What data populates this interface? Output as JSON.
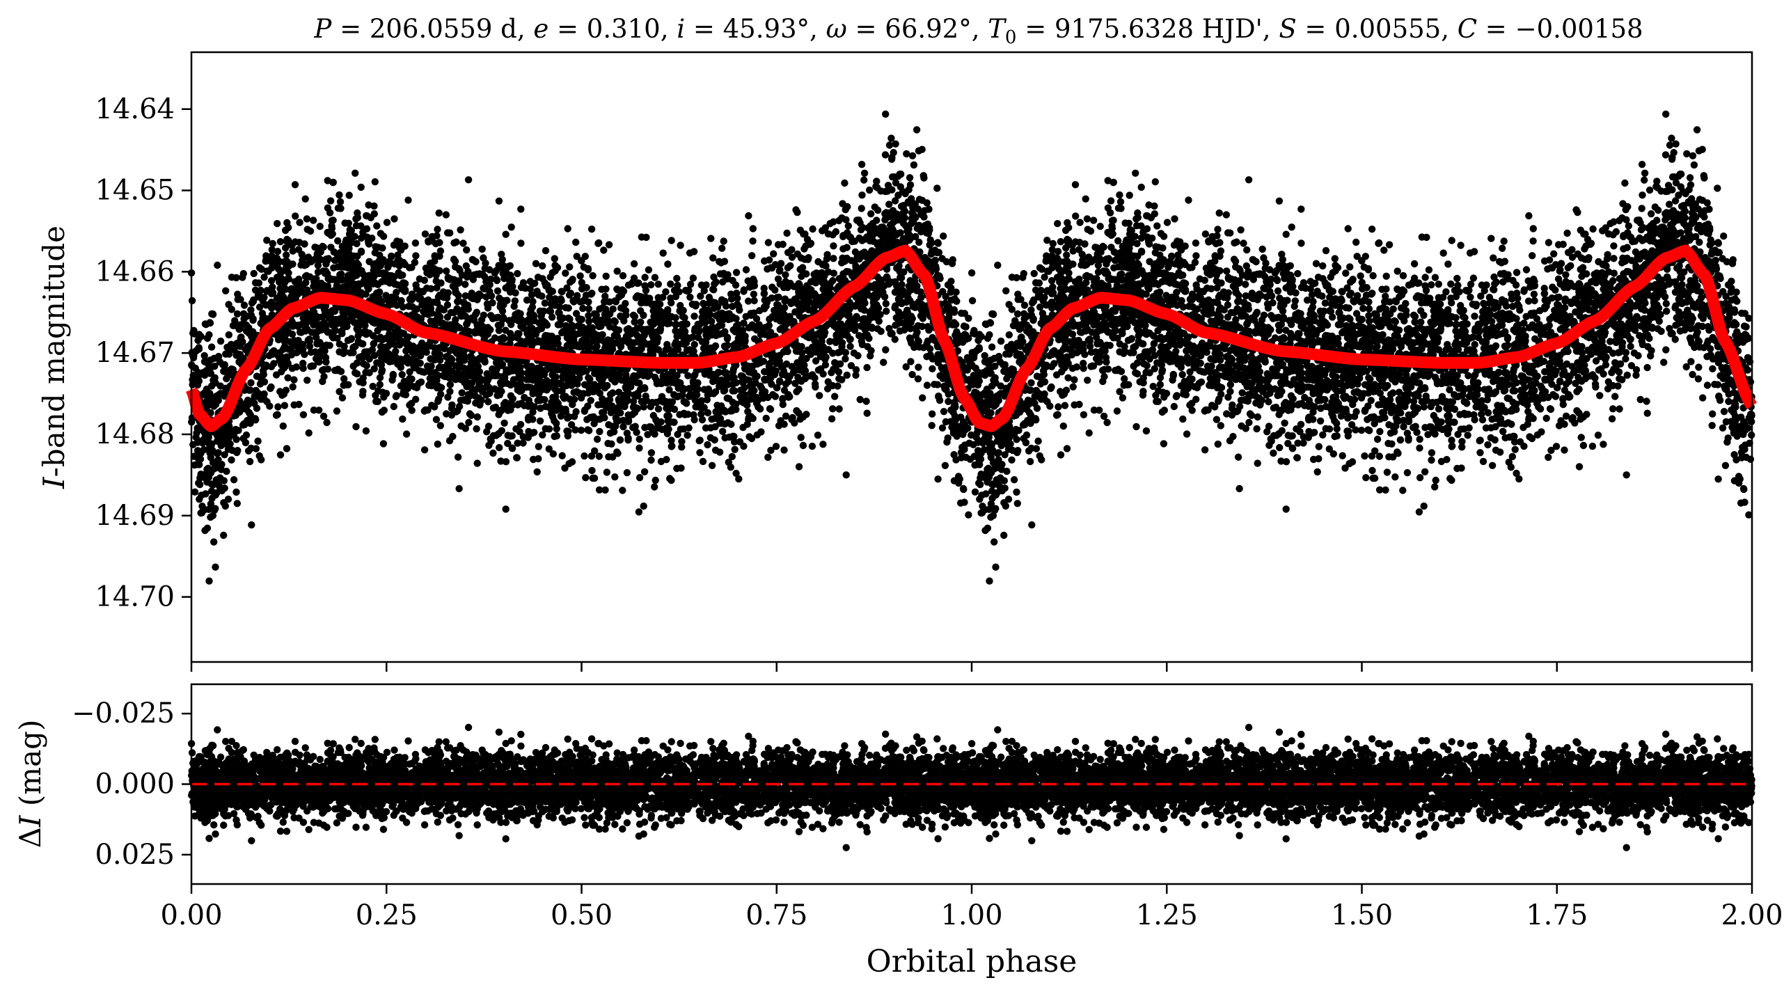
{
  "chart_data": [
    {
      "type": "scatter",
      "panel": "top",
      "title": "P = 206.0559 d, e = 0.310, i = 45.93°, ω = 66.92°, T0 = 9175.6328 HJD', S = 0.00555, C = −0.00158",
      "title_parts": {
        "p_sym": "P",
        "p_val": " = 206.0559 d, ",
        "e_sym": "e",
        "e_val": " = 0.310, ",
        "i_sym": "i",
        "i_val": " = 45.93°, ",
        "w_sym": "ω",
        "w_val": " = 66.92°, ",
        "t_sym": "T",
        "t_sub": "0",
        "t_val": " = 9175.6328 HJD', ",
        "s_sym": "S",
        "s_val": " = 0.00555, ",
        "c_sym": "C",
        "c_val": " = −0.00158"
      },
      "xlabel": "",
      "ylabel": "I-band magnitude",
      "ylabel_parts": {
        "italic": "I",
        "rest": "-band magnitude"
      },
      "xlim": [
        0.0,
        2.0
      ],
      "ylim": [
        14.708,
        14.633
      ],
      "y_inverted": true,
      "ytick_values": [
        14.64,
        14.65,
        14.66,
        14.67,
        14.68,
        14.69,
        14.7
      ],
      "ytick_labels": [
        "14.64",
        "14.65",
        "14.66",
        "14.67",
        "14.68",
        "14.69",
        "14.70"
      ],
      "xtick_values": [
        0.0,
        0.25,
        0.5,
        0.75,
        1.0,
        1.25,
        1.5,
        1.75,
        2.0
      ],
      "grid": false,
      "points_color": "#000000",
      "model": {
        "color": "#ff0000",
        "description_points": [
          [
            0.0,
            14.6745
          ],
          [
            0.01,
            14.6775
          ],
          [
            0.025,
            14.679
          ],
          [
            0.04,
            14.678
          ],
          [
            0.07,
            14.672
          ],
          [
            0.1,
            14.667
          ],
          [
            0.13,
            14.6645
          ],
          [
            0.165,
            14.6632
          ],
          [
            0.2,
            14.6635
          ],
          [
            0.25,
            14.6652
          ],
          [
            0.3,
            14.6675
          ],
          [
            0.4,
            14.6698
          ],
          [
            0.5,
            14.6708
          ],
          [
            0.6,
            14.6712
          ],
          [
            0.65,
            14.6712
          ],
          [
            0.7,
            14.6705
          ],
          [
            0.75,
            14.6688
          ],
          [
            0.8,
            14.666
          ],
          [
            0.85,
            14.6618
          ],
          [
            0.89,
            14.6583
          ],
          [
            0.915,
            14.6574
          ],
          [
            0.94,
            14.6605
          ],
          [
            0.965,
            14.6685
          ],
          [
            0.99,
            14.6755
          ],
          [
            1.01,
            14.6786
          ],
          [
            1.025,
            14.679
          ],
          [
            1.04,
            14.678
          ],
          [
            1.07,
            14.672
          ],
          [
            1.1,
            14.667
          ],
          [
            1.13,
            14.6645
          ],
          [
            1.165,
            14.6632
          ],
          [
            1.2,
            14.6635
          ],
          [
            1.25,
            14.6652
          ],
          [
            1.3,
            14.6675
          ],
          [
            1.4,
            14.6698
          ],
          [
            1.5,
            14.6708
          ],
          [
            1.6,
            14.6712
          ],
          [
            1.65,
            14.6712
          ],
          [
            1.7,
            14.6705
          ],
          [
            1.75,
            14.6688
          ],
          [
            1.8,
            14.666
          ],
          [
            1.85,
            14.6618
          ],
          [
            1.89,
            14.6583
          ],
          [
            1.915,
            14.6574
          ],
          [
            1.94,
            14.6605
          ],
          [
            1.965,
            14.6685
          ],
          [
            2.0,
            14.6765
          ]
        ]
      }
    },
    {
      "type": "scatter",
      "panel": "bottom",
      "title": "",
      "xlabel": "Orbital phase",
      "ylabel": "ΔI (mag)",
      "ylabel_parts": {
        "delta": "Δ",
        "italic": "I",
        "rest": " (mag)"
      },
      "xlim": [
        0.0,
        2.0
      ],
      "ylim": [
        0.0354,
        -0.0354
      ],
      "y_inverted": true,
      "ytick_values": [
        -0.025,
        0.0,
        0.025
      ],
      "ytick_labels": [
        "−0.025",
        "0.000",
        "0.025"
      ],
      "xtick_values": [
        0.0,
        0.25,
        0.5,
        0.75,
        1.0,
        1.25,
        1.5,
        1.75,
        2.0
      ],
      "xtick_labels": [
        "0.00",
        "0.25",
        "0.50",
        "0.75",
        "1.00",
        "1.25",
        "1.50",
        "1.75",
        "2.00"
      ],
      "grid": false,
      "points_color": "#000000",
      "zero_line": {
        "y": 0.0,
        "color": "#ff0000",
        "style": "dashed"
      }
    }
  ]
}
